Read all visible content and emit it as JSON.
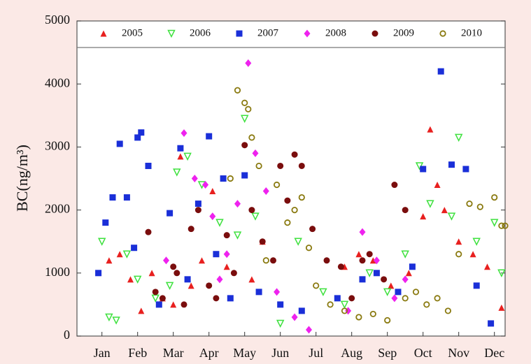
{
  "chart_data": {
    "type": "scatter",
    "ylabel": "BC(ng/m³)",
    "xlim": [
      0.3,
      12.3
    ],
    "ylim": [
      0,
      5000
    ],
    "xticks": [
      {
        "value": 1,
        "label": "Jan"
      },
      {
        "value": 2,
        "label": "Feb"
      },
      {
        "value": 3,
        "label": "Mar"
      },
      {
        "value": 4,
        "label": "Apr"
      },
      {
        "value": 5,
        "label": "May"
      },
      {
        "value": 6,
        "label": "Jun"
      },
      {
        "value": 7,
        "label": "Jul"
      },
      {
        "value": 8,
        "label": "Aug"
      },
      {
        "value": 9,
        "label": "Sep"
      },
      {
        "value": 10,
        "label": "Oct"
      },
      {
        "value": 11,
        "label": "Nov"
      },
      {
        "value": 12,
        "label": "Dec"
      }
    ],
    "yticks": [
      0,
      1000,
      2000,
      3000,
      4000,
      5000
    ],
    "legend": "top",
    "series": [
      {
        "name": "2005",
        "color": "#e8201f",
        "marker": "triangle-up",
        "x": [
          1.2,
          1.5,
          1.8,
          2.1,
          2.4,
          2.7,
          3.0,
          3.2,
          3.5,
          3.8,
          4.1,
          4.5,
          5.2,
          5.5,
          7.8,
          8.2,
          8.6,
          9.1,
          9.6,
          10.0,
          10.2,
          10.4,
          10.6,
          11.0,
          11.4,
          11.8,
          12.2
        ],
        "values": [
          1200,
          1300,
          900,
          400,
          1000,
          600,
          500,
          2850,
          800,
          1200,
          2300,
          1100,
          900,
          1500,
          1100,
          1300,
          1200,
          800,
          1000,
          1900,
          3280,
          2400,
          2000,
          1500,
          1300,
          1100,
          450
        ]
      },
      {
        "name": "2006",
        "color": "#3ee13e",
        "marker": "triangle-down-open",
        "x": [
          1.0,
          1.2,
          1.4,
          1.7,
          2.0,
          2.5,
          2.9,
          3.1,
          3.4,
          3.8,
          4.3,
          4.8,
          5.0,
          5.3,
          6.0,
          6.5,
          7.2,
          7.8,
          8.5,
          9.0,
          9.5,
          9.9,
          10.2,
          10.8,
          11.0,
          11.5,
          12.0,
          12.2
        ],
        "values": [
          1500,
          300,
          250,
          1300,
          900,
          600,
          800,
          2600,
          2850,
          2400,
          1800,
          1600,
          3450,
          1900,
          200,
          1500,
          700,
          500,
          1000,
          700,
          1300,
          2700,
          2100,
          1900,
          3150,
          1500,
          1800,
          1000
        ]
      },
      {
        "name": "2007",
        "color": "#1a2fd8",
        "marker": "square",
        "x": [
          0.9,
          1.1,
          1.3,
          1.5,
          1.7,
          1.9,
          2.0,
          2.1,
          2.3,
          2.6,
          2.9,
          3.2,
          3.4,
          3.7,
          4.0,
          4.2,
          4.4,
          4.6,
          5.0,
          5.4,
          6.0,
          6.6,
          7.6,
          8.3,
          8.7,
          9.3,
          9.7,
          10.0,
          10.5,
          10.8,
          11.2,
          11.5,
          11.9
        ],
        "values": [
          1000,
          1800,
          2200,
          3050,
          2200,
          1400,
          3150,
          3230,
          2700,
          500,
          1950,
          2980,
          900,
          2100,
          3170,
          1300,
          2500,
          600,
          2550,
          700,
          500,
          400,
          600,
          900,
          1000,
          700,
          1100,
          2650,
          4200,
          2720,
          2650,
          800,
          200
        ]
      },
      {
        "name": "2008",
        "color": "#ee22ee",
        "marker": "diamond",
        "x": [
          2.8,
          3.3,
          3.6,
          3.9,
          4.1,
          4.3,
          4.5,
          4.8,
          5.1,
          5.3,
          5.6,
          5.9,
          6.4,
          6.8,
          7.9,
          8.3,
          8.7,
          9.2,
          9.5
        ],
        "values": [
          1200,
          3220,
          2500,
          2400,
          1900,
          900,
          1300,
          2100,
          4330,
          2900,
          2300,
          700,
          300,
          100,
          400,
          1650,
          1200,
          600,
          900
        ]
      },
      {
        "name": "2009",
        "color": "#7a0d0d",
        "marker": "circle",
        "x": [
          2.3,
          2.5,
          2.7,
          3.0,
          3.1,
          3.3,
          3.5,
          3.7,
          4.0,
          4.2,
          4.5,
          4.7,
          5.0,
          5.2,
          5.5,
          5.8,
          6.0,
          6.2,
          6.4,
          6.6,
          6.9,
          7.3,
          7.7,
          8.0,
          8.3,
          8.5,
          8.9,
          9.2,
          9.5
        ],
        "values": [
          1650,
          700,
          600,
          1100,
          1000,
          500,
          1700,
          2000,
          800,
          600,
          1600,
          1000,
          3030,
          2000,
          1500,
          1200,
          2700,
          2150,
          2880,
          2700,
          1700,
          1200,
          1100,
          600,
          1200,
          1300,
          900,
          2400,
          2000
        ]
      },
      {
        "name": "2010",
        "color": "#8a7a10",
        "marker": "circle-open",
        "x": [
          4.6,
          4.8,
          5.0,
          5.1,
          5.2,
          5.4,
          5.6,
          5.9,
          6.2,
          6.4,
          6.6,
          6.8,
          7.0,
          7.4,
          7.8,
          8.2,
          8.6,
          9.0,
          9.5,
          9.8,
          10.1,
          10.4,
          10.7,
          11.0,
          11.3,
          11.6,
          12.0,
          12.2,
          12.3
        ],
        "values": [
          2500,
          3900,
          3700,
          3600,
          3150,
          2700,
          1200,
          2400,
          1800,
          2000,
          2200,
          1400,
          800,
          500,
          400,
          300,
          350,
          250,
          600,
          700,
          500,
          600,
          400,
          1300,
          2100,
          2050,
          2200,
          1750,
          1750
        ]
      }
    ]
  }
}
